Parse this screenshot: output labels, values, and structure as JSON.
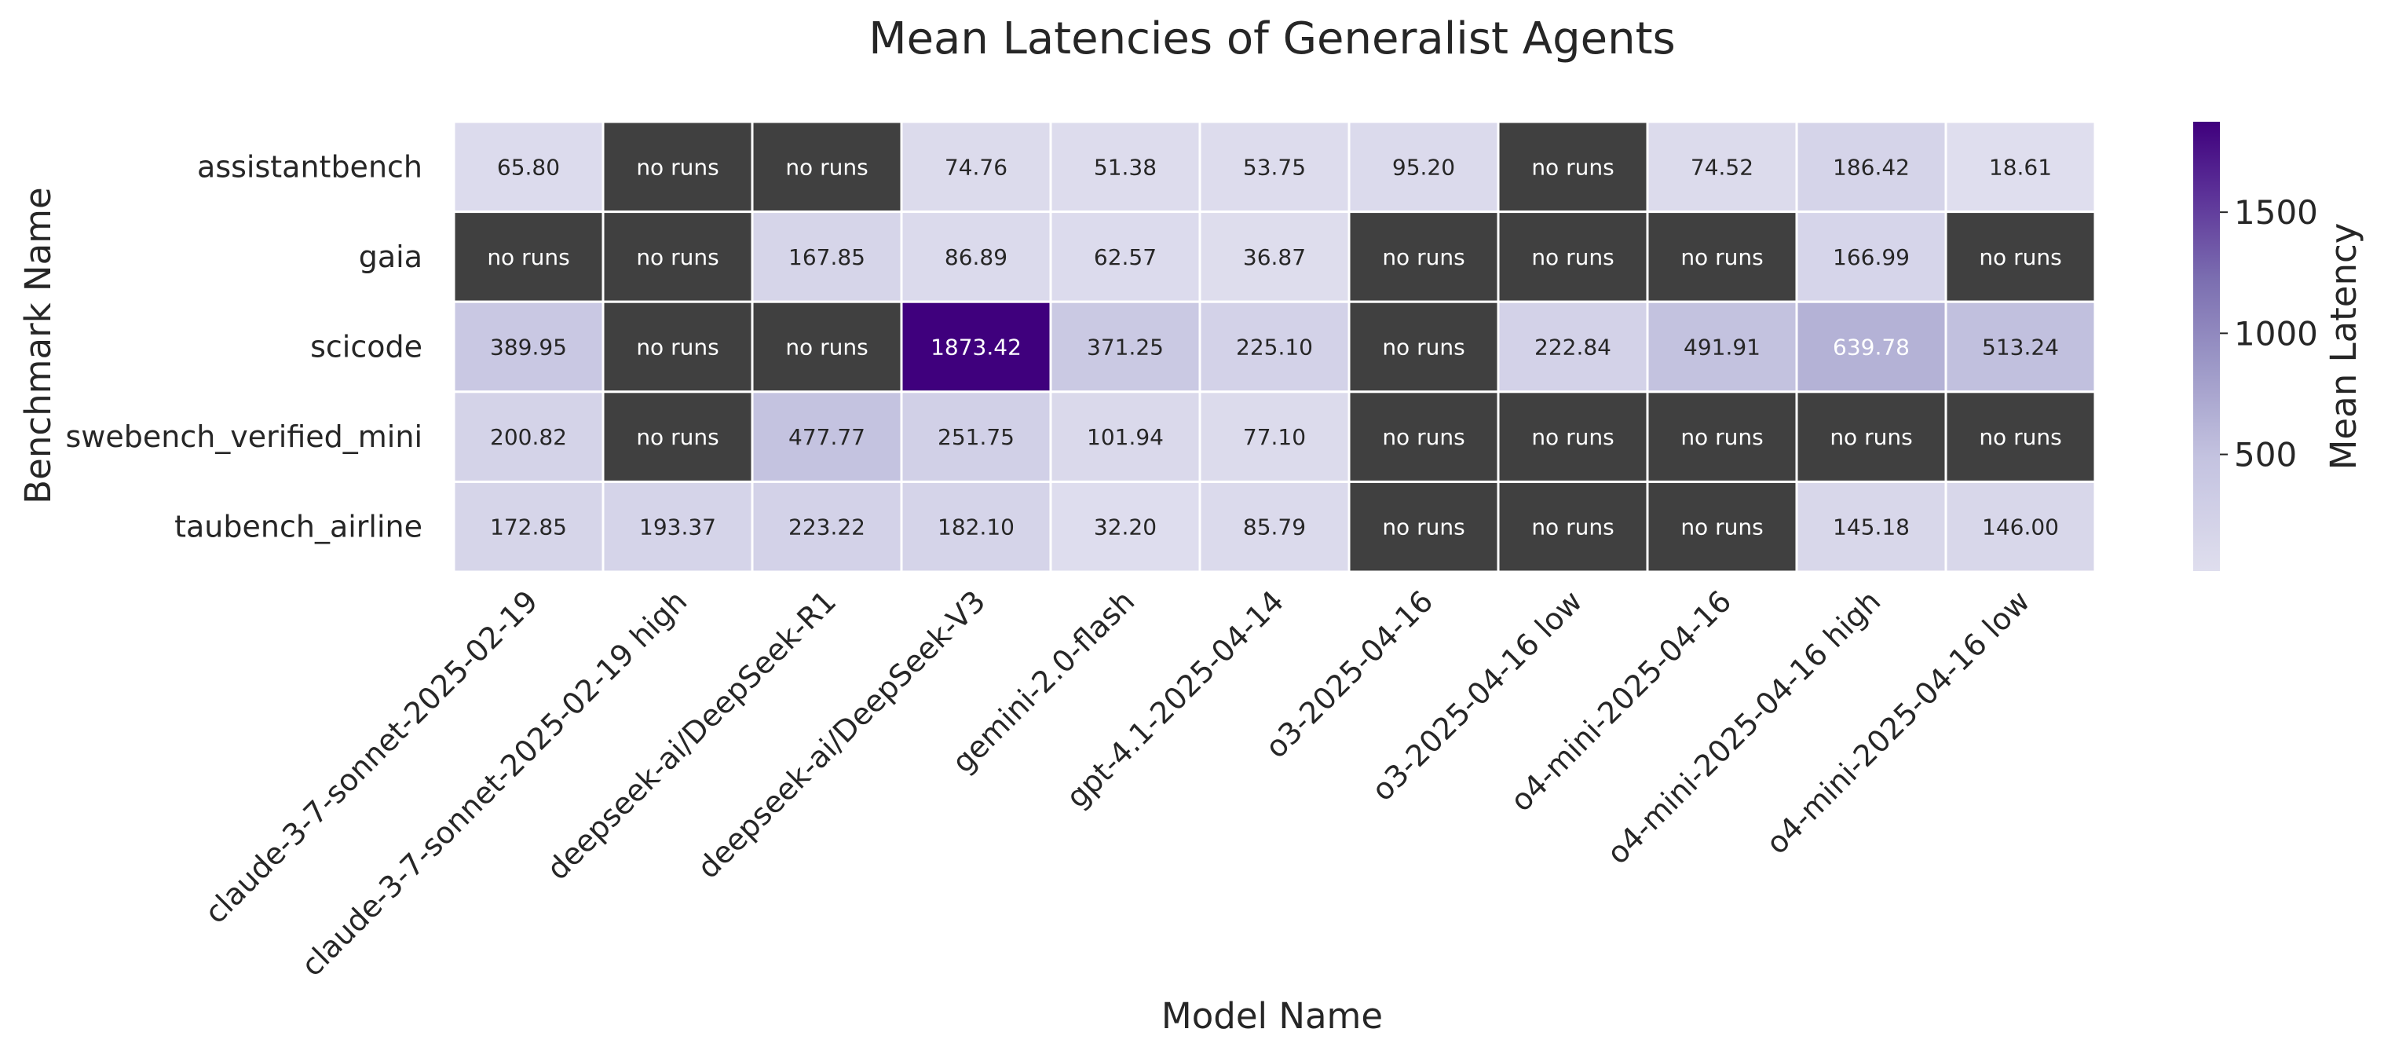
{
  "chart_data": {
    "type": "heatmap",
    "title": "Mean Latencies of Generalist Agents",
    "xlabel": "Model Name",
    "ylabel": "Benchmark Name",
    "colorbar_label": "Mean Latency",
    "colorbar_ticks": [
      500,
      1000,
      1500
    ],
    "colorbar_range": [
      18.61,
      1873.42
    ],
    "colormap": "Purples",
    "missing_label": "no runs",
    "missing_color": "#404040",
    "x_categories": [
      "claude-3-7-sonnet-2025-02-19",
      "claude-3-7-sonnet-2025-02-19 high",
      "deepseek-ai/DeepSeek-R1",
      "deepseek-ai/DeepSeek-V3",
      "gemini-2.0-flash",
      "gpt-4.1-2025-04-14",
      "o3-2025-04-16",
      "o3-2025-04-16 low",
      "o4-mini-2025-04-16",
      "o4-mini-2025-04-16 high",
      "o4-mini-2025-04-16 low"
    ],
    "y_categories": [
      "assistantbench",
      "gaia",
      "scicode",
      "swebench_verified_mini",
      "taubench_airline"
    ],
    "values": [
      [
        65.8,
        null,
        null,
        74.76,
        51.38,
        53.75,
        95.2,
        null,
        74.52,
        186.42,
        18.61
      ],
      [
        null,
        null,
        167.85,
        86.89,
        62.57,
        36.87,
        null,
        null,
        null,
        166.99,
        null
      ],
      [
        389.95,
        null,
        null,
        1873.42,
        371.25,
        225.1,
        null,
        222.84,
        491.91,
        639.78,
        513.24
      ],
      [
        200.82,
        null,
        477.77,
        251.75,
        101.94,
        77.1,
        null,
        null,
        null,
        null,
        null
      ],
      [
        172.85,
        193.37,
        223.22,
        182.1,
        32.2,
        85.79,
        null,
        null,
        null,
        145.18,
        146.0
      ]
    ]
  }
}
